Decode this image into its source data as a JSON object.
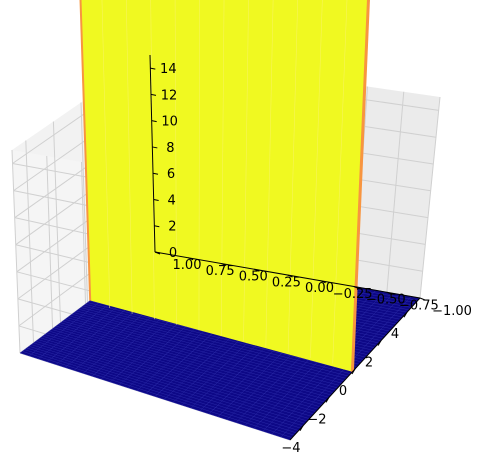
{
  "chart_data": {
    "type": "surface",
    "title": "",
    "xlabel": "",
    "ylabel": "",
    "zlabel": "",
    "xlim": [
      -5,
      5
    ],
    "ylim": [
      -1,
      1
    ],
    "zlim": [
      0,
      15
    ],
    "x_ticks": [
      -4,
      -2,
      0,
      2,
      4
    ],
    "y_ticks": [
      -1.0,
      -0.75,
      -0.5,
      -0.25,
      0.0,
      0.25,
      0.5,
      0.75,
      1.0
    ],
    "z_ticks": [
      0,
      2,
      4,
      6,
      8,
      10,
      12,
      14
    ],
    "x_tick_labels": [
      "−4",
      "−2",
      "0",
      "2",
      "4"
    ],
    "y_tick_labels": [
      "−1.00",
      "−0.75",
      "−0.50",
      "−0.25",
      "0.00",
      "0.25",
      "0.50",
      "0.75",
      "1.00"
    ],
    "z_tick_labels": [
      "0",
      "2",
      "4",
      "6",
      "8",
      "10",
      "12",
      "14"
    ],
    "surface": {
      "description_values": {
        "baseline_z": 0,
        "spike_x_range": [
          -0.2,
          0.2
        ],
        "spike_z": 15,
        "spike_exceeds_zlim": true
      },
      "colors": {
        "low": "#0d0887",
        "high": "#f0f921",
        "edge": "#f89540"
      }
    },
    "grid": true
  }
}
